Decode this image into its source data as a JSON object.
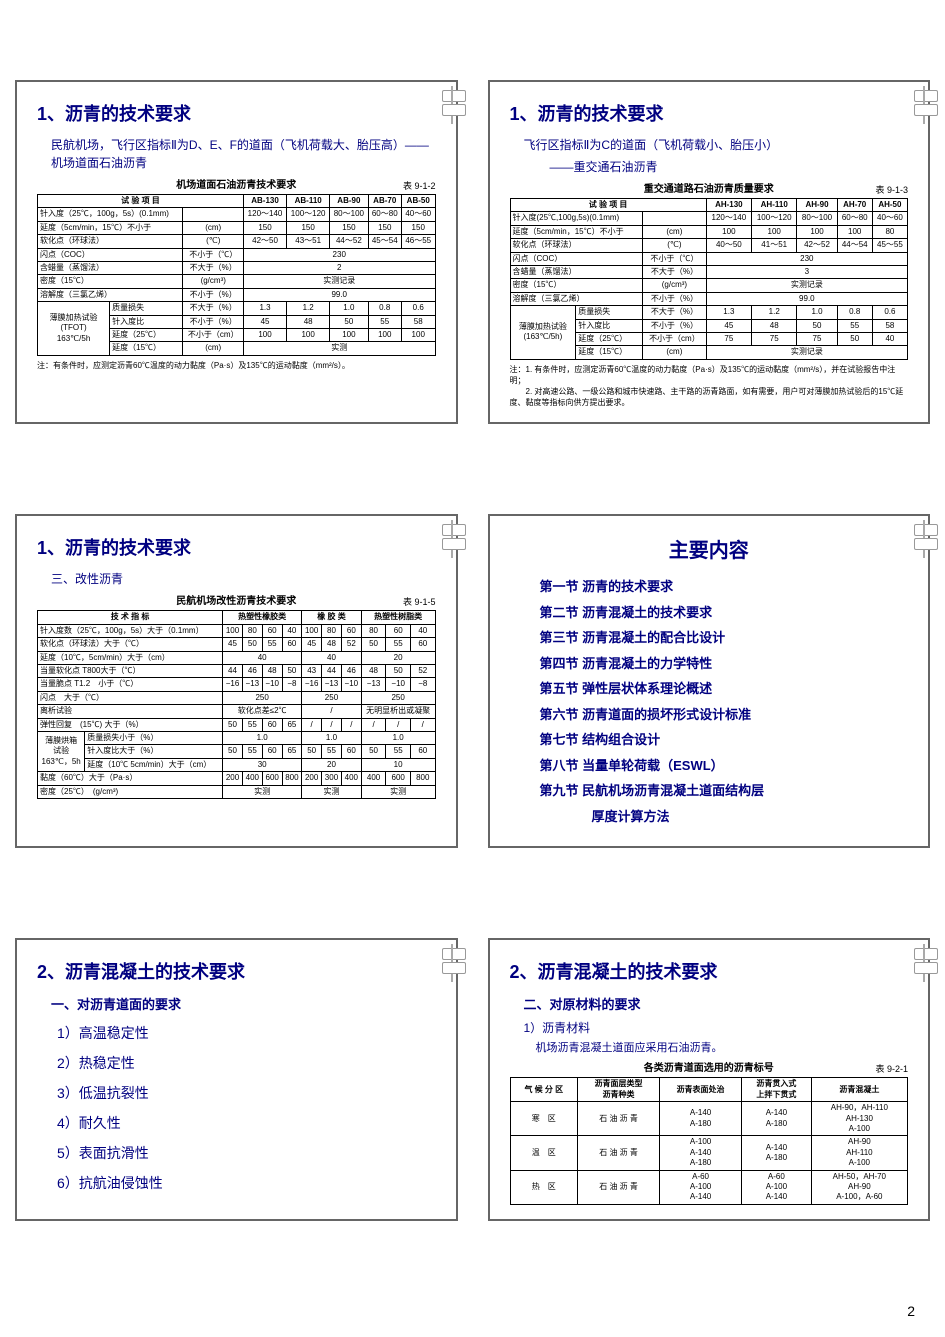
{
  "page_number": "2",
  "slide1": {
    "title": "1、沥青的技术要求",
    "subtitle": "民航机场，飞行区指标Ⅱ为D、E、F的道面（飞机荷载大、胎压高）——机场道面石油沥青",
    "table_title": "机场道面石油沥青技术要求",
    "table_number": "表 9-1-2",
    "cols": [
      "试 验 项 目",
      "",
      "AB-130",
      "AB-110",
      "AB-90",
      "AB-70",
      "AB-50"
    ],
    "rows": [
      [
        "针入度（25℃，100g，5s）(0.1mm)",
        "",
        "120～140",
        "100～120",
        "80～100",
        "60～80",
        "40～60"
      ],
      [
        "延度（5cm/min，15℃）不小于",
        "(cm)",
        "150",
        "150",
        "150",
        "150",
        "150"
      ],
      [
        "软化点（环球法）",
        "(℃)",
        "42～50",
        "43～51",
        "44～52",
        "45～54",
        "46～55"
      ],
      [
        "闪点（COC）",
        "不小于（℃）",
        "",
        "",
        "230",
        "",
        ""
      ],
      [
        "含蜡量（蒸馏法）",
        "不大于（%）",
        "",
        "",
        "2",
        "",
        ""
      ],
      [
        "密度（15℃）",
        "(g/cm³)",
        "",
        "",
        "实测记录",
        "",
        ""
      ],
      [
        "溶解度（三氯乙烯）",
        "不小于（%）",
        "",
        "",
        "99.0",
        "",
        ""
      ]
    ],
    "tfot_label": "薄膜加热试验\n(TFOT)\n163℃/5h",
    "tfot_rows": [
      [
        "质量损失",
        "不大于（%）",
        "1.3",
        "1.2",
        "1.0",
        "0.8",
        "0.6"
      ],
      [
        "针入度比",
        "不小于（%）",
        "45",
        "48",
        "50",
        "55",
        "58"
      ],
      [
        "延度（25℃）",
        "不小于（cm）",
        "100",
        "100",
        "100",
        "100",
        "100"
      ],
      [
        "延度（15℃）",
        "(cm)",
        "",
        "",
        "实测",
        "",
        ""
      ]
    ],
    "note": "注：有条件时，应测定沥青60℃温度的动力黏度（Pa·s）及135℃的运动黏度（mm²/s）。"
  },
  "slide2": {
    "title": "1、沥青的技术要求",
    "subtitle1": "飞行区指标Ⅱ为C的道面（飞机荷载小、胎压小）",
    "subtitle2": "——重交通石油沥青",
    "table_title": "重交通道路石油沥青质量要求",
    "table_number": "表 9-1-3",
    "cols": [
      "试 验 项 目",
      "",
      "AH-130",
      "AH-110",
      "AH-90",
      "AH-70",
      "AH-50"
    ],
    "rows": [
      [
        "针入度(25℃,100g,5s)(0.1mm)",
        "",
        "120～140",
        "100～120",
        "80～100",
        "60～80",
        "40～60"
      ],
      [
        "延度（5cm/min，15℃）不小于",
        "(cm)",
        "100",
        "100",
        "100",
        "100",
        "80"
      ],
      [
        "软化点（环球法）",
        "(℃)",
        "40～50",
        "41～51",
        "42～52",
        "44～54",
        "45～55"
      ],
      [
        "闪点（COC）",
        "不小于（℃）",
        "",
        "",
        "230",
        "",
        ""
      ],
      [
        "含蜡量（蒸馏法）",
        "不大于（%）",
        "",
        "",
        "3",
        "",
        ""
      ],
      [
        "密度（15℃）",
        "(g/cm³)",
        "",
        "",
        "实测记录",
        "",
        ""
      ],
      [
        "溶解度（三氯乙烯）",
        "不小于（%）",
        "",
        "",
        "99.0",
        "",
        ""
      ]
    ],
    "tfot_label": "薄膜加热试验\n(163℃/5h)",
    "tfot_rows": [
      [
        "质量损失",
        "不大于（%）",
        "1.3",
        "1.2",
        "1.0",
        "0.8",
        "0.6"
      ],
      [
        "针入度比",
        "不小于（%）",
        "45",
        "48",
        "50",
        "55",
        "58"
      ],
      [
        "延度（25℃）",
        "不小于（cm）",
        "75",
        "75",
        "75",
        "50",
        "40"
      ],
      [
        "延度（15℃）",
        "(cm)",
        "",
        "",
        "实测记录",
        "",
        ""
      ]
    ],
    "note": "注：1. 有条件时，应测定沥青60℃温度的动力黏度（Pa·s）及135℃的运动黏度（mm²/s），并在试验报告中注明；\n　　2. 对高速公路、一级公路和城市快速路、主干路的沥青路面，如有需要，用户可对薄膜加热试验后的15℃延度、黏度等指标向供方提出要求。"
  },
  "slide3": {
    "title": "1、沥青的技术要求",
    "subtitle": "三、改性沥青",
    "table_title": "民航机场改性沥青技术要求",
    "table_number": "表 9-1-5",
    "group_headers": [
      "技 术 指 标",
      "热塑性橡胶类",
      "橡 胶 类",
      "热塑性树脂类"
    ],
    "num_headers": [
      "100",
      "80",
      "60",
      "40",
      "100",
      "80",
      "60",
      "80",
      "60",
      "40"
    ],
    "rows": [
      [
        "针入度数（25℃，100g，5s）大于（0.1mm）",
        "100",
        "80",
        "60",
        "40",
        "100",
        "80",
        "60",
        "80",
        "60",
        "40"
      ],
      [
        "软化点（环球法）大于（℃）",
        "45",
        "50",
        "55",
        "60",
        "45",
        "48",
        "52",
        "50",
        "55",
        "60"
      ],
      [
        "延度（10℃，5cm/min）大于（cm）",
        "",
        "40",
        "",
        "",
        "",
        "40",
        "",
        "",
        "20",
        ""
      ],
      [
        "当量软化点 T800大于（℃）",
        "44",
        "46",
        "48",
        "50",
        "43",
        "44",
        "46",
        "48",
        "50",
        "52"
      ],
      [
        "当量脆点 T1.2　小于（℃）",
        "−16",
        "−13",
        "−10",
        "−8",
        "−16",
        "−13",
        "−10",
        "−13",
        "−10",
        "−8"
      ],
      [
        "闪点　大于（℃）",
        "",
        "250",
        "",
        "",
        "",
        "250",
        "",
        "",
        "250",
        ""
      ],
      [
        "离析试验",
        "",
        "软化点差≤2℃",
        "",
        "",
        "",
        "/",
        "",
        "",
        "无明显析出或凝聚",
        ""
      ],
      [
        "弹性回复　(15℃) 大于（%）",
        "50",
        "55",
        "60",
        "65",
        "/",
        "/",
        "/",
        "/",
        "/",
        "/"
      ]
    ],
    "tfot_label": "薄膜烘箱\n试验\n163℃，5h",
    "tfot_rows": [
      [
        "质量损失小于（%）",
        "",
        "1.0",
        "",
        "",
        "",
        "1.0",
        "",
        "",
        "1.0",
        ""
      ],
      [
        "针入度比大于（%）",
        "50",
        "55",
        "60",
        "65",
        "50",
        "55",
        "60",
        "50",
        "55",
        "60"
      ],
      [
        "延度（10℃ 5cm/min）大于（cm）",
        "",
        "30",
        "",
        "",
        "",
        "20",
        "",
        "",
        "10",
        ""
      ]
    ],
    "tailrows": [
      [
        "黏度（60℃）大于（Pa·s）",
        "200",
        "400",
        "600",
        "800",
        "200",
        "300",
        "400",
        "400",
        "600",
        "800"
      ],
      [
        "密度（25℃）　(g/cm³)",
        "",
        "实测",
        "",
        "",
        "",
        "实测",
        "",
        "",
        "实测",
        ""
      ]
    ]
  },
  "slide4": {
    "title": "主要内容",
    "items": [
      "第一节  沥青的技术要求",
      "第二节  沥青混凝土的技术要求",
      "第三节  沥青混凝土的配合比设计",
      "第四节  沥青混凝土的力学特性",
      "第五节  弹性层状体系理论概述",
      "第六节  沥青道面的损坏形式设计标准",
      "第七节  结构组合设计",
      "第八节  当量单轮荷载（ESWL）",
      "第九节  民航机场沥青混凝土道面结构层",
      "　　　　厚度计算方法"
    ]
  },
  "slide5": {
    "title": "2、沥青混凝土的技术要求",
    "subhead": "一、对沥青道面的要求",
    "items": [
      "1）高温稳定性",
      "2）热稳定性",
      "3）低温抗裂性",
      "4）耐久性",
      "5）表面抗滑性",
      "6）抗航油侵蚀性"
    ]
  },
  "slide6": {
    "title": "2、沥青混凝土的技术要求",
    "subhead": "二、对原材料的要求",
    "sub2": "1）沥青材料",
    "sub3": "机场沥青混凝土道面应采用石油沥青。",
    "table_title": "各类沥青道面选用的沥青标号",
    "table_number": "表 9-2-1",
    "cols": [
      "气 候 分 区",
      "沥青面层类型\n沥青种类",
      "沥青表面处治",
      "沥青贯入式\n上拌下贯式",
      "沥青混凝土"
    ],
    "rows": [
      [
        "寒　区",
        "石 油 沥 青",
        "A-140\nA-180",
        "A-140\nA-180",
        "AH-90，AH-110\nAH-130\nA-100"
      ],
      [
        "温　区",
        "石 油 沥 青",
        "A-100\nA-140\nA-180",
        "A-140\nA-180",
        "AH-90\nAH-110\nA-100"
      ],
      [
        "热　区",
        "石 油 沥 青",
        "A-60\nA-100\nA-140",
        "A-60\nA-100\nA-140",
        "AH-50，AH-70\nAH-90\nA-100，A-60"
      ]
    ]
  }
}
